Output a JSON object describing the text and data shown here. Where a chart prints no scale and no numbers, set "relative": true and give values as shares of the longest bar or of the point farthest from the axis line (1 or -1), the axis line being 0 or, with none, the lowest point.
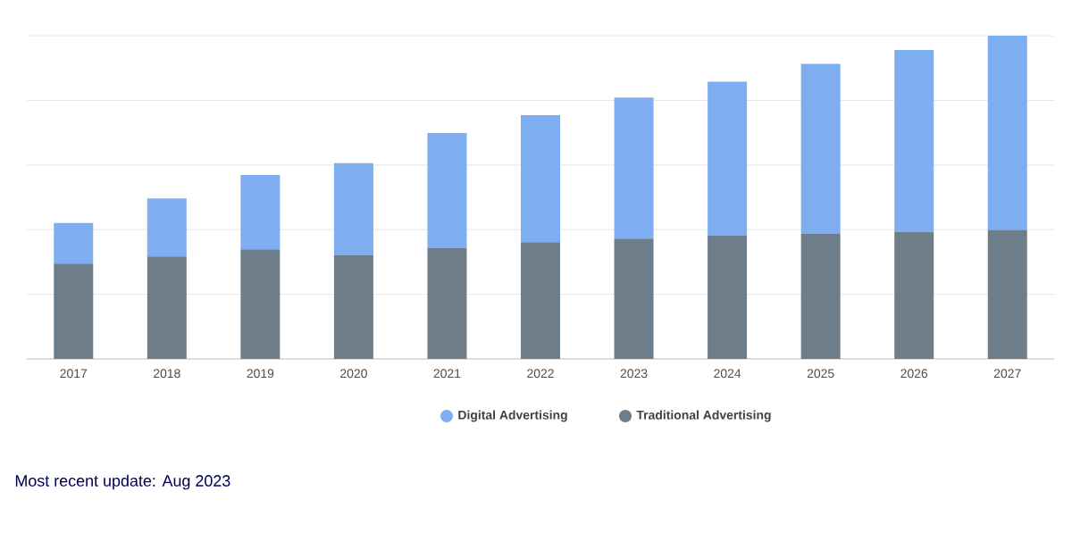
{
  "chart_data": {
    "type": "bar",
    "stacked": true,
    "relative": true,
    "grid": "y",
    "legend": "bottom",
    "categories": [
      "2017",
      "2018",
      "2019",
      "2020",
      "2021",
      "2022",
      "2023",
      "2024",
      "2025",
      "2026",
      "2027"
    ],
    "series": [
      {
        "name": "Traditional Advertising",
        "color": "#6e7d8a",
        "values": [
          0.295,
          0.317,
          0.339,
          0.322,
          0.344,
          0.361,
          0.372,
          0.383,
          0.388,
          0.393,
          0.399
        ]
      },
      {
        "name": "Digital Advertising",
        "color": "#7eaef0",
        "values": [
          0.126,
          0.18,
          0.23,
          0.284,
          0.355,
          0.393,
          0.437,
          0.475,
          0.525,
          0.563,
          0.601
        ]
      }
    ],
    "annotations": [
      "Most recent update: Aug 2023"
    ]
  }
}
